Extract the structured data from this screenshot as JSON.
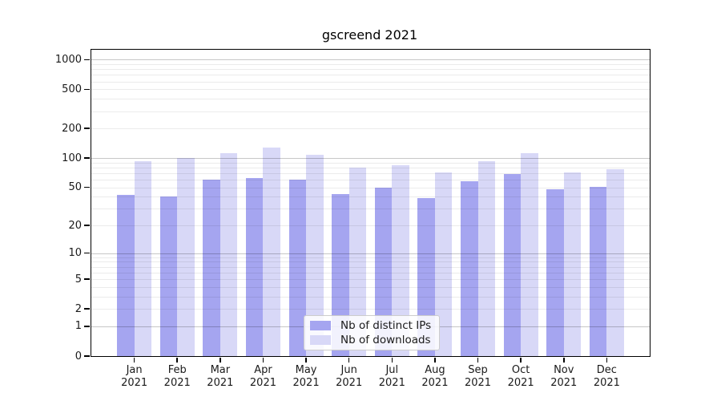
{
  "title": "gscreend 2021",
  "chart_data": {
    "type": "bar",
    "title": "gscreend 2021",
    "y_scale": "log1p",
    "ylim": [
      0,
      1260
    ],
    "grid": true,
    "legend_position": "lower-center",
    "categories": [
      "Jan",
      "Feb",
      "Mar",
      "Apr",
      "May",
      "Jun",
      "Jul",
      "Aug",
      "Sep",
      "Oct",
      "Nov",
      "Dec"
    ],
    "x_tick_year": "2021",
    "y_ticks": [
      1000,
      500,
      200,
      100,
      50,
      20,
      10,
      5,
      2,
      1,
      0
    ],
    "series": [
      {
        "name": "Nb of distinct IPs",
        "color": "#a5a5f0",
        "values": [
          42,
          40,
          60,
          62,
          60,
          43,
          50,
          39,
          58,
          69,
          48,
          51
        ]
      },
      {
        "name": "Nb of downloads",
        "color": "#d8d8f7",
        "values": [
          93,
          101,
          112,
          128,
          107,
          80,
          84,
          71,
          93,
          112,
          71,
          77
        ]
      }
    ]
  },
  "colors": {
    "spine": "#000000",
    "grid_major": "rgba(0,0,0,0.22)",
    "grid_minor": "rgba(0,0,0,0.08)",
    "text": "#1a1a1a",
    "legend_border": "#cccccc",
    "legend_background": "rgba(255,255,255,0.85)",
    "background": "#ffffff"
  }
}
